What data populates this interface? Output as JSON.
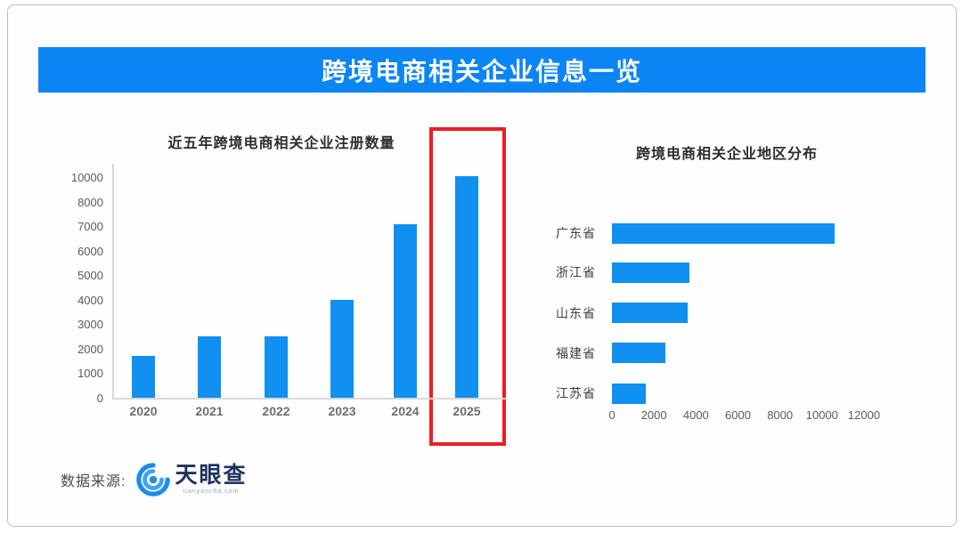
{
  "page": {
    "banner_title": "跨境电商相关企业信息一览"
  },
  "colors": {
    "banner_blue": "#0b85f4",
    "bar_blue": "#1090f0",
    "highlight_red": "#ec1e24",
    "logo_blue": "#1a8ced"
  },
  "source": {
    "label": "数据来源:",
    "logo_icon": "tianyancha-eye-icon",
    "logo_text": "天眼查",
    "logo_sub": "tianyancha.com"
  },
  "chart_data": [
    {
      "type": "bar",
      "title": "近五年跨境电商相关企业注册数量",
      "categories": [
        "2020",
        "2021",
        "2022",
        "2023",
        "2024",
        "2025"
      ],
      "values": [
        1700,
        2500,
        2500,
        4000,
        7100,
        10100
      ],
      "y_ticks": [
        10000,
        8000,
        7000,
        6000,
        5000,
        4000,
        3000,
        2000,
        1000,
        0
      ],
      "ylim": [
        0,
        10600
      ],
      "xlabel": "",
      "ylabel": "",
      "grid": false,
      "legend": false,
      "highlight": {
        "category": "2025",
        "style": "red-rectangle"
      }
    },
    {
      "type": "bar-horizontal",
      "title": "跨境电商相关企业地区分布",
      "categories": [
        "广东省",
        "浙江省",
        "山东省",
        "福建省",
        "江苏省"
      ],
      "values": [
        10600,
        3700,
        3600,
        2550,
        1600
      ],
      "x_ticks": [
        0,
        2000,
        4000,
        6000,
        8000,
        10000,
        12000
      ],
      "xlim": [
        0,
        12000
      ],
      "xlabel": "",
      "ylabel": "",
      "grid": false,
      "legend": false
    }
  ]
}
